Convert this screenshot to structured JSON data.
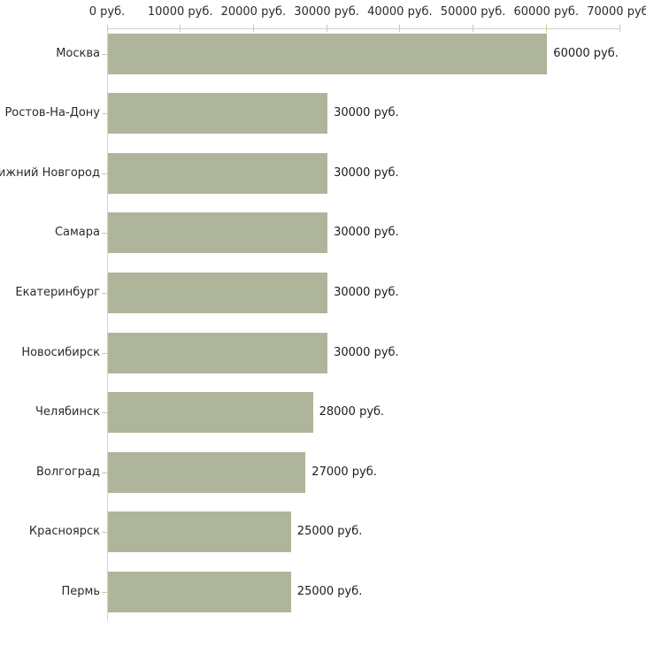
{
  "chart_data": {
    "type": "bar",
    "orientation": "horizontal",
    "title": "",
    "xlabel": "",
    "ylabel": "",
    "unit": "руб.",
    "categories": [
      "Москва",
      "Ростов-На-Дону",
      "Нижний Новгород",
      "Самара",
      "Екатеринбург",
      "Новосибирск",
      "Челябинск",
      "Волгоград",
      "Красноярск",
      "Пермь"
    ],
    "values": [
      60000,
      30000,
      30000,
      30000,
      30000,
      30000,
      28000,
      27000,
      25000,
      25000
    ],
    "value_labels": [
      "60000 руб.",
      "30000 руб.",
      "30000 руб.",
      "30000 руб.",
      "30000 руб.",
      "30000 руб.",
      "28000 руб.",
      "27000 руб.",
      "25000 руб.",
      "25000 руб."
    ],
    "x_ticks": [
      0,
      10000,
      20000,
      30000,
      40000,
      50000,
      60000,
      70000
    ],
    "x_tick_labels": [
      "0 руб.",
      "10000 руб.",
      "20000 руб.",
      "30000 руб.",
      "40000 руб.",
      "50000 руб.",
      "60000 руб.",
      "70000 руб."
    ],
    "xlim": [
      0,
      70000
    ],
    "grid": false,
    "legend": false,
    "colors": {
      "bar": "#afb59a",
      "axis": "#d2d2d2",
      "tick": "#c8ce9e",
      "text": "#2a2a2a",
      "background": "#ffffff"
    }
  }
}
